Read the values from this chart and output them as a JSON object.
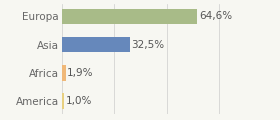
{
  "categories": [
    "America",
    "Africa",
    "Asia",
    "Europa"
  ],
  "values": [
    1.0,
    1.9,
    32.5,
    64.6
  ],
  "labels": [
    "1,0%",
    "1,9%",
    "32,5%",
    "64,6%"
  ],
  "bar_colors": [
    "#e8d080",
    "#f0b878",
    "#6688bb",
    "#a8bb88"
  ],
  "background_color": "#f7f7f2",
  "xlim": [
    0,
    80
  ],
  "bar_height": 0.55,
  "label_fontsize": 7.5,
  "tick_fontsize": 7.5,
  "figsize": [
    2.8,
    1.2
  ],
  "dpi": 100
}
